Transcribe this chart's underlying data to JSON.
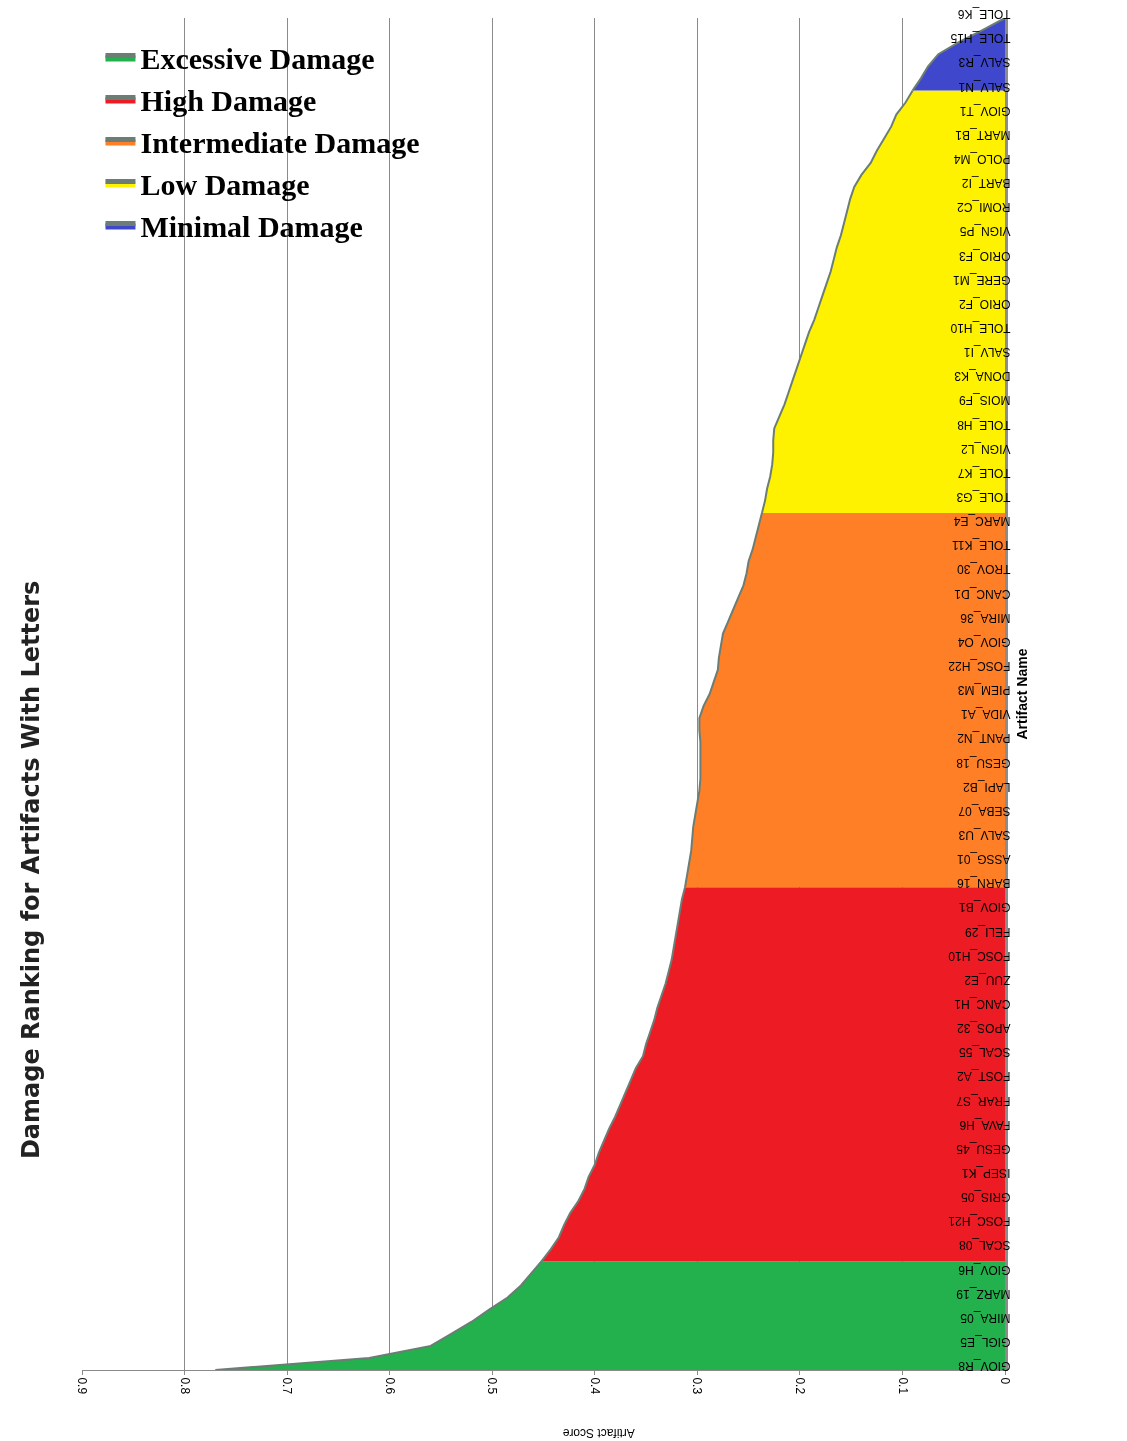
{
  "chart_data": {
    "type": "area",
    "orientation": "horizontal",
    "title": "Damage Ranking for Artifacts With Letters",
    "xlabel": "Artifact Score",
    "ylabel": "Artifact Name",
    "categories": [
      "TOLE_K6",
      null,
      "TOLE_H15",
      null,
      "SALV_R3",
      null,
      "SALV_N1",
      null,
      "GIOV_T1",
      null,
      "MART_B1",
      null,
      "POLO_M4",
      null,
      "BART_I2",
      null,
      "ROMI_C2",
      null,
      "VIGN_P5",
      null,
      "ORIO_F3",
      null,
      "GERE_M1",
      null,
      "ORIO_F2",
      null,
      "TOLE_H10",
      null,
      "SALV_I1",
      null,
      "DONA_K3",
      null,
      "MOIS_F9",
      null,
      "TOLE_H8",
      null,
      "VIGN_L2",
      null,
      "TOLE_K7",
      null,
      "TOLE_G3",
      null,
      "MARC_E4",
      null,
      "TOLE_K11",
      null,
      "TROV_30",
      null,
      "CANC_D1",
      null,
      "MIRA_36",
      null,
      "GIOV_O4",
      null,
      "FOSC_H22",
      null,
      "PIEM_M3",
      null,
      "VIDA_A1",
      null,
      "PANT_N2",
      null,
      "GESU_18",
      null,
      "LAPI_B2",
      null,
      "SEBA_07",
      null,
      "SALV_U3",
      null,
      "ASSG_01",
      null,
      "BARN_16",
      null,
      "GIOV_B1",
      null,
      "FELI_29",
      null,
      "FOSC_H10",
      null,
      "ZUU_E2",
      null,
      "CANC_H1",
      null,
      "APOS_32",
      null,
      "SCAL_55",
      null,
      "FOST_A2",
      null,
      "FRAR_S7",
      null,
      "FAVA_H6",
      null,
      "GESU_45",
      null,
      "ISEP_K1",
      null,
      "GRIS_05",
      null,
      "FOSC_H21",
      null,
      "SCAL_08",
      null,
      "GIOV_H6",
      null,
      "MARZ_19",
      null,
      "MIRA_05",
      null,
      "GIGL_E5",
      null,
      "GIOV_R8"
    ],
    "series": [
      {
        "name": "Excessive Damage",
        "color": "#22b14c",
        "values": [
          null,
          null,
          null,
          null,
          null,
          null,
          null,
          null,
          null,
          null,
          null,
          null,
          null,
          null,
          null,
          null,
          null,
          null,
          null,
          null,
          null,
          null,
          null,
          null,
          null,
          null,
          null,
          null,
          null,
          null,
          null,
          null,
          null,
          null,
          null,
          null,
          null,
          null,
          null,
          null,
          null,
          null,
          null,
          null,
          null,
          null,
          null,
          null,
          null,
          null,
          null,
          null,
          null,
          null,
          null,
          null,
          null,
          null,
          null,
          null,
          null,
          null,
          null,
          null,
          null,
          null,
          null,
          null,
          null,
          null,
          null,
          null,
          null,
          null,
          null,
          null,
          null,
          null,
          null,
          null,
          null,
          null,
          null,
          null,
          null,
          null,
          null,
          null,
          null,
          null,
          null,
          null,
          null,
          null,
          null,
          null,
          null,
          null,
          null,
          null,
          null,
          null,
          null,
          0.452,
          0.462,
          0.472,
          0.485,
          0.503,
          0.52,
          0.54,
          0.56,
          0.62,
          0.77
        ]
      },
      {
        "name": "High Damage",
        "color": "#ed1c24",
        "values": [
          null,
          null,
          null,
          null,
          null,
          null,
          null,
          null,
          null,
          null,
          null,
          null,
          null,
          null,
          null,
          null,
          null,
          null,
          null,
          null,
          null,
          null,
          null,
          null,
          null,
          null,
          null,
          null,
          null,
          null,
          null,
          null,
          null,
          null,
          null,
          null,
          null,
          null,
          null,
          null,
          null,
          null,
          null,
          null,
          null,
          null,
          null,
          null,
          null,
          null,
          null,
          null,
          null,
          null,
          null,
          null,
          null,
          null,
          null,
          null,
          null,
          null,
          null,
          null,
          null,
          null,
          null,
          null,
          null,
          null,
          null,
          null,
          0.312,
          0.315,
          0.317,
          0.319,
          0.321,
          0.323,
          0.325,
          0.328,
          0.331,
          0.335,
          0.339,
          0.342,
          0.346,
          0.35,
          0.353,
          0.36,
          0.365,
          0.37,
          0.375,
          0.38,
          0.386,
          0.391,
          0.396,
          0.4,
          0.406,
          0.41,
          0.416,
          0.424,
          0.43,
          0.435,
          0.443,
          0.452,
          null,
          null,
          null,
          null,
          null,
          null,
          null,
          null,
          null
        ]
      },
      {
        "name": "Intermediate Damage",
        "color": "#ff7f27",
        "values": [
          null,
          null,
          null,
          null,
          null,
          null,
          null,
          null,
          null,
          null,
          null,
          null,
          null,
          null,
          null,
          null,
          null,
          null,
          null,
          null,
          null,
          null,
          null,
          null,
          null,
          null,
          null,
          null,
          null,
          null,
          null,
          null,
          null,
          null,
          null,
          null,
          null,
          null,
          null,
          null,
          null,
          0.237,
          0.24,
          0.243,
          0.246,
          0.25,
          0.252,
          0.255,
          0.26,
          0.265,
          0.27,
          0.275,
          0.277,
          0.279,
          0.28,
          0.284,
          0.288,
          0.294,
          0.298,
          0.298,
          0.297,
          0.297,
          0.297,
          0.297,
          0.298,
          0.3,
          0.302,
          0.304,
          0.305,
          0.306,
          0.308,
          0.31,
          0.312,
          null,
          null,
          null,
          null,
          null,
          null,
          null,
          null,
          null,
          null,
          null,
          null,
          null,
          null,
          null,
          null,
          null,
          null,
          null,
          null,
          null,
          null,
          null,
          null,
          null,
          null,
          null,
          null,
          null,
          null,
          null,
          null,
          null,
          null,
          null,
          null,
          null,
          null,
          null,
          null
        ]
      },
      {
        "name": "Low Damage",
        "color": "#fff200",
        "values": [
          null,
          null,
          null,
          null,
          null,
          null,
          0.09,
          0.097,
          0.106,
          0.111,
          0.118,
          0.125,
          0.131,
          0.14,
          0.147,
          0.151,
          0.154,
          0.157,
          0.16,
          0.164,
          0.167,
          0.17,
          0.174,
          0.178,
          0.182,
          0.186,
          0.191,
          0.195,
          0.199,
          0.203,
          0.207,
          0.211,
          0.215,
          0.22,
          0.225,
          0.226,
          0.226,
          0.227,
          0.229,
          0.232,
          0.234,
          0.237,
          null,
          null,
          null,
          null,
          null,
          null,
          null,
          null,
          null,
          null,
          null,
          null,
          null,
          null,
          null,
          null,
          null,
          null,
          null,
          null,
          null,
          null,
          null,
          null,
          null,
          null,
          null,
          null,
          null,
          null,
          null,
          null,
          null,
          null,
          null,
          null,
          null,
          null,
          null,
          null,
          null,
          null,
          null,
          null,
          null,
          null,
          null,
          null,
          null,
          null,
          null,
          null,
          null,
          null,
          null,
          null,
          null,
          null,
          null,
          null,
          null,
          null,
          null,
          null,
          null,
          null,
          null,
          null,
          null,
          null,
          null
        ]
      },
      {
        "name": "Minimal Damage",
        "color": "#3f48cc",
        "values": [
          0,
          0.022,
          0.045,
          0.065,
          0.075,
          0.082,
          0.09,
          null,
          null,
          null,
          null,
          null,
          null,
          null,
          null,
          null,
          null,
          null,
          null,
          null,
          null,
          null,
          null,
          null,
          null,
          null,
          null,
          null,
          null,
          null,
          null,
          null,
          null,
          null,
          null,
          null,
          null,
          null,
          null,
          null,
          null,
          null,
          null,
          null,
          null,
          null,
          null,
          null,
          null,
          null,
          null,
          null,
          null,
          null,
          null,
          null,
          null,
          null,
          null,
          null,
          null,
          null,
          null,
          null,
          null,
          null,
          null,
          null,
          null,
          null,
          null,
          null,
          null,
          null,
          null,
          null,
          null,
          null,
          null,
          null,
          null,
          null,
          null,
          null,
          null,
          null,
          null,
          null,
          null,
          null,
          null,
          null,
          null,
          null,
          null,
          null,
          null,
          null,
          null,
          null,
          null,
          null,
          null,
          null,
          null,
          null,
          null,
          null,
          null,
          null,
          null,
          null,
          null
        ]
      }
    ],
    "xlim": [
      0.9,
      0
    ],
    "xticks": [
      0,
      0.1,
      0.2,
      0.3,
      0.4,
      0.5,
      0.6,
      0.7,
      0.8,
      0.9
    ],
    "grid": "x",
    "legend": "top left"
  }
}
